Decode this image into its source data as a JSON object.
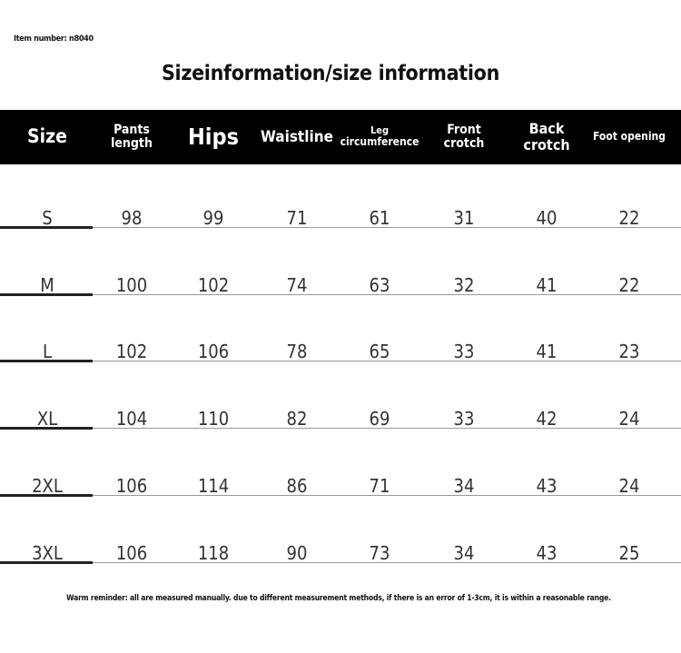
{
  "item_number": "Item number: n8040",
  "title": "Sizeinformation/size information",
  "headers": [
    [
      "Size",
      ""
    ],
    [
      "Pants",
      "length"
    ],
    [
      "Hips",
      ""
    ],
    [
      "Waistline",
      ""
    ],
    [
      "Leg",
      "circumference"
    ],
    [
      "Front",
      "crotch"
    ],
    [
      "Back",
      "crotch"
    ],
    [
      "Foot opening",
      ""
    ]
  ],
  "rows": [
    [
      "S",
      "98",
      "99",
      "71",
      "61",
      "31",
      "40",
      "22"
    ],
    [
      "M",
      "100",
      "102",
      "74",
      "63",
      "32",
      "41",
      "22"
    ],
    [
      "L",
      "102",
      "106",
      "78",
      "65",
      "33",
      "41",
      "23"
    ],
    [
      "XL",
      "104",
      "110",
      "82",
      "69",
      "33",
      "42",
      "24"
    ],
    [
      "2XL",
      "106",
      "114",
      "86",
      "71",
      "34",
      "43",
      "24"
    ],
    [
      "3XL",
      "106",
      "118",
      "90",
      "73",
      "34",
      "43",
      "25"
    ]
  ],
  "note": "Warm reminder: all are measured manually. due to different measurement methods, if there is an error of 1-3cm, it is within a reasonable range."
}
